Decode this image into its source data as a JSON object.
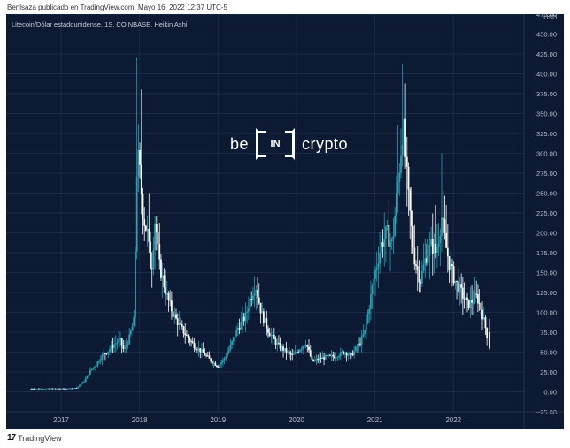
{
  "header": {
    "caption": "Benlsaza publicado en TradingView.com, Mayo 16, 2022 12:37 UTC-5"
  },
  "chart": {
    "symbol_title": "Litecoin/Dólar estadounidense, 1S, COINBASE, Heikin Ashi",
    "price_unit": "USD",
    "watermark": {
      "left": "be",
      "box": "IN",
      "right": "crypto"
    }
  },
  "footer": {
    "logo_mark": "17",
    "logo_text": "TradingView"
  },
  "colors": {
    "background": "#0c1a33",
    "grid": "#1b2a45",
    "up_candle": "#27a2b6",
    "down_candle": "#ffffff",
    "axis_text": "#b6bdc9"
  },
  "chart_data": {
    "type": "line",
    "subtype": "candlestick (Heikin Ashi), weekly",
    "title": "Litecoin/Dólar estadounidense, 1S, COINBASE, Heikin Ashi",
    "ylabel": "USD",
    "ylim": [
      -25,
      475
    ],
    "xlim": [
      2016.3,
      2022.9
    ],
    "y_ticks": [
      "475.00",
      "450.00",
      "425.00",
      "400.00",
      "375.00",
      "350.00",
      "325.00",
      "300.00",
      "275.00",
      "250.00",
      "225.00",
      "200.00",
      "175.00",
      "150.00",
      "125.00",
      "100.00",
      "75.00",
      "50.00",
      "25.00",
      "0.00",
      "−25.00"
    ],
    "x_ticks": [
      {
        "label": "2017",
        "t": 2017.0
      },
      {
        "label": "2018",
        "t": 2018.0
      },
      {
        "label": "2019",
        "t": 2019.0
      },
      {
        "label": "2020",
        "t": 2020.0
      },
      {
        "label": "2021",
        "t": 2021.0
      },
      {
        "label": "2022",
        "t": 2022.0
      }
    ],
    "grid": true,
    "series": [
      {
        "values": [
          [
            2016.62,
            4
          ],
          [
            2016.75,
            4
          ],
          [
            2016.9,
            4
          ],
          [
            2017.0,
            4
          ],
          [
            2017.1,
            4
          ],
          [
            2017.2,
            5
          ],
          [
            2017.3,
            14
          ],
          [
            2017.38,
            28
          ],
          [
            2017.45,
            35
          ],
          [
            2017.52,
            45
          ],
          [
            2017.6,
            52
          ],
          [
            2017.68,
            60
          ],
          [
            2017.75,
            65
          ],
          [
            2017.8,
            52
          ],
          [
            2017.87,
            68
          ],
          [
            2017.93,
            90
          ],
          [
            2017.97,
            300
          ],
          [
            2018.0,
            280
          ],
          [
            2018.05,
            220
          ],
          [
            2018.1,
            200
          ],
          [
            2018.15,
            150
          ],
          [
            2018.2,
            220
          ],
          [
            2018.25,
            160
          ],
          [
            2018.3,
            140
          ],
          [
            2018.35,
            120
          ],
          [
            2018.42,
            100
          ],
          [
            2018.5,
            85
          ],
          [
            2018.6,
            70
          ],
          [
            2018.7,
            58
          ],
          [
            2018.8,
            50
          ],
          [
            2018.9,
            40
          ],
          [
            2019.0,
            32
          ],
          [
            2019.08,
            42
          ],
          [
            2019.15,
            55
          ],
          [
            2019.25,
            80
          ],
          [
            2019.35,
            95
          ],
          [
            2019.42,
            120
          ],
          [
            2019.48,
            135
          ],
          [
            2019.55,
            100
          ],
          [
            2019.65,
            75
          ],
          [
            2019.75,
            60
          ],
          [
            2019.85,
            52
          ],
          [
            2019.95,
            45
          ],
          [
            2020.05,
            55
          ],
          [
            2020.12,
            62
          ],
          [
            2020.2,
            38
          ],
          [
            2020.3,
            42
          ],
          [
            2020.4,
            44
          ],
          [
            2020.5,
            45
          ],
          [
            2020.6,
            50
          ],
          [
            2020.7,
            46
          ],
          [
            2020.8,
            60
          ],
          [
            2020.87,
            75
          ],
          [
            2020.93,
            110
          ],
          [
            2021.0,
            150
          ],
          [
            2021.08,
            185
          ],
          [
            2021.15,
            200
          ],
          [
            2021.22,
            185
          ],
          [
            2021.3,
            270
          ],
          [
            2021.36,
            340
          ],
          [
            2021.42,
            250
          ],
          [
            2021.5,
            170
          ],
          [
            2021.58,
            140
          ],
          [
            2021.65,
            170
          ],
          [
            2021.72,
            185
          ],
          [
            2021.78,
            175
          ],
          [
            2021.85,
            220
          ],
          [
            2021.9,
            185
          ],
          [
            2021.95,
            160
          ],
          [
            2022.02,
            140
          ],
          [
            2022.1,
            125
          ],
          [
            2022.18,
            110
          ],
          [
            2022.25,
            115
          ],
          [
            2022.3,
            120
          ],
          [
            2022.35,
            105
          ],
          [
            2022.4,
            85
          ],
          [
            2022.44,
            65
          ]
        ]
      }
    ],
    "visible_price_range_usd": [
      0,
      420
    ]
  }
}
